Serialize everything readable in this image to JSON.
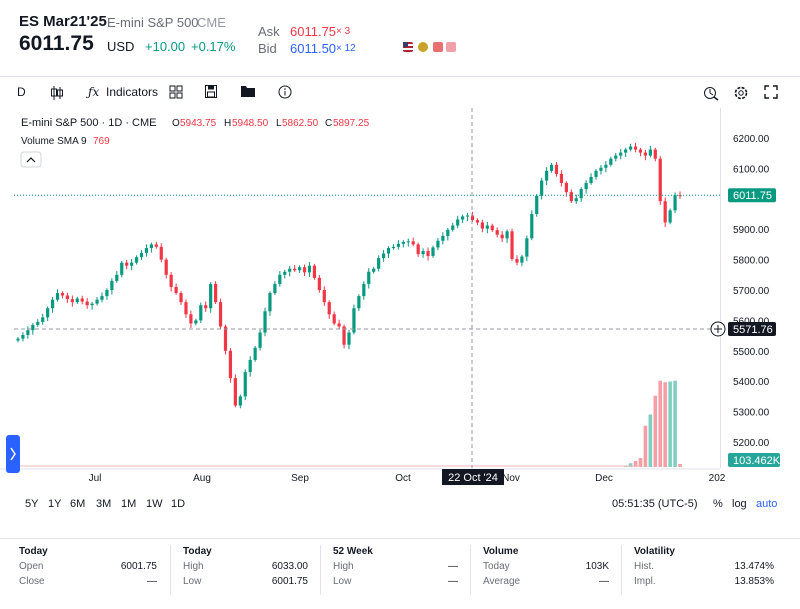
{
  "header": {
    "symbol": "ES Mar21'25",
    "name": "E-mini S&P 500",
    "exchange": "CME",
    "price": "6011.75",
    "currency": "USD",
    "change": "+10.00",
    "change_pct": "+0.17%",
    "ask_label": "Ask",
    "ask_value": "6011.75",
    "ask_size": "× 3",
    "bid_label": "Bid",
    "bid_value": "6011.50",
    "bid_size": "× 12"
  },
  "toolbar": {
    "interval": "D",
    "indicators_label": "Indicators",
    "icons": [
      "candles-icon",
      "fx-icon",
      "grid-icon",
      "save-icon",
      "folder-icon",
      "info-icon",
      "crosshair-icon",
      "gear-icon",
      "fullscreen-icon"
    ]
  },
  "legend": {
    "title": "E-mini S&P 500 · 1D · CME",
    "o_label": "O",
    "o_value": "5943.75",
    "h_label": "H",
    "h_value": "5948.50",
    "l_label": "L",
    "l_value": "5862.50",
    "c_label": "C",
    "c_value": "5897.25",
    "volume_label": "Volume SMA 9",
    "volume_value": "769"
  },
  "chart_data": {
    "type": "candlestick",
    "ylim": [
      5150,
      6250
    ],
    "y_ticks": [
      "6200.00",
      "6100.00",
      "5900.00",
      "5800.00",
      "5700.00",
      "5600.00",
      "5500.00",
      "5400.00",
      "5300.00",
      "5200.00"
    ],
    "x_ticks": [
      "Jul",
      "Aug",
      "Sep",
      "Oct",
      "Nov",
      "Dec",
      "202"
    ],
    "last_price_label": "6011.75",
    "crosshair_price_label": "5571.76",
    "crosshair_date_label": "22 Oct '24",
    "volume_label": "103.462K",
    "colors": {
      "up": "#089981",
      "down": "#f23645",
      "vol_up": "#7fcfc0",
      "vol_down": "#f59ea6"
    },
    "close": [
      5540,
      5552,
      5568,
      5585,
      5595,
      5610,
      5640,
      5668,
      5690,
      5682,
      5670,
      5660,
      5672,
      5662,
      5650,
      5655,
      5668,
      5680,
      5700,
      5730,
      5750,
      5790,
      5780,
      5790,
      5808,
      5822,
      5838,
      5850,
      5842,
      5800,
      5750,
      5710,
      5690,
      5660,
      5620,
      5590,
      5600,
      5650,
      5640,
      5720,
      5660,
      5580,
      5500,
      5410,
      5320,
      5350,
      5430,
      5470,
      5510,
      5560,
      5630,
      5690,
      5720,
      5750,
      5760,
      5770,
      5765,
      5775,
      5758,
      5780,
      5740,
      5700,
      5660,
      5620,
      5590,
      5580,
      5520,
      5560,
      5640,
      5680,
      5720,
      5760,
      5770,
      5805,
      5820,
      5838,
      5842,
      5852,
      5858,
      5860,
      5850,
      5818,
      5828,
      5812,
      5840,
      5862,
      5878,
      5898,
      5912,
      5932,
      5942,
      5945,
      5930,
      5922,
      5902,
      5912,
      5897,
      5882,
      5870,
      5893,
      5802,
      5790,
      5810,
      5870,
      5950,
      6010,
      6060,
      6092,
      6112,
      6082,
      6052,
      6022,
      5992,
      6002,
      6032,
      6052,
      6072,
      6092,
      6102,
      6112,
      6132,
      6142,
      6152,
      6162,
      6172,
      6162,
      6152,
      6142,
      6162,
      6132,
      5992,
      5922,
      5962,
      6012,
      6011.75
    ],
    "volume_tail": [
      2,
      5,
      8,
      12,
      55,
      70,
      95,
      115,
      113,
      114,
      115,
      4
    ],
    "series": [
      {
        "name": "Volume SMA 9"
      }
    ]
  },
  "ranges": {
    "items": [
      "5Y",
      "1Y",
      "6M",
      "3M",
      "1M",
      "1W",
      "1D"
    ],
    "clock": "05:51:35 (UTC-5)",
    "pct": "%",
    "log": "log",
    "auto": "auto"
  },
  "stats": {
    "today1": {
      "title": "Today",
      "r1_label": "Open",
      "r1_value": "6001.75",
      "r2_label": "Close",
      "r2_value": "—"
    },
    "today2": {
      "title": "Today",
      "r1_label": "High",
      "r1_value": "6033.00",
      "r2_label": "Low",
      "r2_value": "6001.75"
    },
    "week52": {
      "title": "52 Week",
      "r1_label": "High",
      "r1_value": "—",
      "r2_label": "Low",
      "r2_value": "—"
    },
    "volume": {
      "title": "Volume",
      "r1_label": "Today",
      "r1_value": "103K",
      "r2_label": "Average",
      "r2_value": "—"
    },
    "volatility": {
      "title": "Volatility",
      "r1_label": "Hist.",
      "r1_value": "13.474%",
      "r2_label": "Impl.",
      "r2_value": "13.853%"
    }
  }
}
